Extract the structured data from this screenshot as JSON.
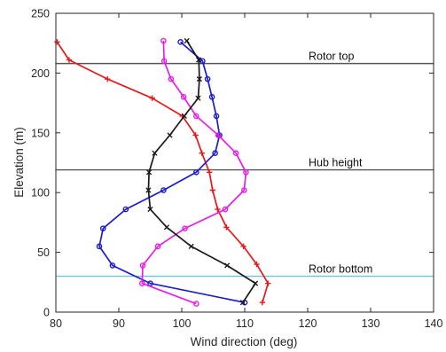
{
  "chart_data": {
    "type": "line",
    "xlabel": "Wind direction (deg)",
    "ylabel": "Elevation (m)",
    "xlim": [
      80,
      140
    ],
    "ylim": [
      0,
      250
    ],
    "xticks": [
      80,
      90,
      100,
      110,
      120,
      130,
      140
    ],
    "yticks": [
      0,
      50,
      100,
      150,
      200,
      250
    ],
    "grid": false,
    "reference_lines": [
      {
        "label": "Rotor top",
        "y": 208,
        "color": "#555555"
      },
      {
        "label": "Hub height",
        "y": 119,
        "color": "#555555"
      },
      {
        "label": "Rotor bottom",
        "y": 30,
        "color": "#6fc3df"
      }
    ],
    "series": [
      {
        "color": "#e8191a",
        "marker": "plus",
        "points": [
          [
            80.2,
            226
          ],
          [
            82.1,
            211
          ],
          [
            88.2,
            195
          ],
          [
            95.3,
            179
          ],
          [
            100.1,
            164
          ],
          [
            102.2,
            148
          ],
          [
            103.2,
            133
          ],
          [
            104.4,
            117
          ],
          [
            104.9,
            102
          ],
          [
            105.7,
            86
          ],
          [
            107.1,
            71
          ],
          [
            109.8,
            55
          ],
          [
            111.9,
            40
          ],
          [
            113.7,
            24
          ],
          [
            112.8,
            8
          ]
        ]
      },
      {
        "color": "#1c1ccf",
        "marker": "circle",
        "points": [
          [
            99.8,
            226
          ],
          [
            103.3,
            210
          ],
          [
            104.1,
            195
          ],
          [
            104.8,
            180
          ],
          [
            105.5,
            164
          ],
          [
            106.0,
            148
          ],
          [
            105.3,
            133
          ],
          [
            102.3,
            117
          ],
          [
            97.1,
            102
          ],
          [
            91.1,
            86
          ],
          [
            87.5,
            70
          ],
          [
            86.9,
            55
          ],
          [
            89.0,
            39
          ],
          [
            95.0,
            24
          ],
          [
            110.0,
            8
          ]
        ]
      },
      {
        "color": "#e61ee6",
        "marker": "circle",
        "points": [
          [
            97.1,
            227
          ],
          [
            97.2,
            210
          ],
          [
            98.3,
            195
          ],
          [
            100.3,
            180
          ],
          [
            102.3,
            164
          ],
          [
            105.8,
            148
          ],
          [
            108.6,
            133
          ],
          [
            110.2,
            117
          ],
          [
            109.9,
            102
          ],
          [
            106.9,
            86
          ],
          [
            100.5,
            70
          ],
          [
            96.2,
            55
          ],
          [
            93.8,
            39
          ],
          [
            93.7,
            24
          ],
          [
            102.3,
            7
          ]
        ]
      },
      {
        "color": "#1a1a1a",
        "marker": "x",
        "points": [
          [
            100.8,
            227
          ],
          [
            102.7,
            211
          ],
          [
            102.8,
            195
          ],
          [
            102.6,
            179
          ],
          [
            100.4,
            164
          ],
          [
            98.1,
            148
          ],
          [
            95.7,
            133
          ],
          [
            94.8,
            117
          ],
          [
            94.7,
            102
          ],
          [
            95.0,
            86
          ],
          [
            97.6,
            71
          ],
          [
            101.5,
            55
          ],
          [
            107.2,
            39
          ],
          [
            111.7,
            24
          ],
          [
            109.7,
            8
          ]
        ]
      }
    ]
  }
}
